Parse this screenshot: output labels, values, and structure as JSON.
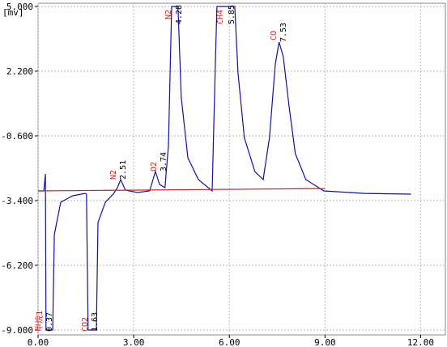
{
  "chart_data": {
    "type": "line",
    "y_unit": "[mv]",
    "xlim": [
      0,
      12.7
    ],
    "ylim": [
      -9,
      5
    ],
    "xticks": [
      {
        "value": 0,
        "label": "0.00"
      },
      {
        "value": 3,
        "label": "3.00"
      },
      {
        "value": 6,
        "label": "6.00"
      },
      {
        "value": 9,
        "label": "9.00"
      },
      {
        "value": 12,
        "label": "12.00"
      }
    ],
    "yticks": [
      {
        "value": 5,
        "label": "5.000"
      },
      {
        "value": 2.2,
        "label": "2.200"
      },
      {
        "value": -0.6,
        "label": "-0.600"
      },
      {
        "value": -3.4,
        "label": "-3.400"
      },
      {
        "value": -6.2,
        "label": "-6.200"
      },
      {
        "value": -9,
        "label": "-9.000"
      }
    ],
    "grid": true,
    "series": [
      {
        "color": "#1010a0",
        "x": [
          0.0,
          0.18,
          0.23,
          0.25,
          0.46,
          0.51,
          0.71,
          1.09,
          1.47,
          1.52,
          1.57,
          1.83,
          1.88,
          2.11,
          2.36,
          2.49,
          2.59,
          2.74,
          3.12,
          3.5,
          3.68,
          3.81,
          3.98,
          4.09,
          4.19,
          4.39,
          4.49,
          4.7,
          5.03,
          5.46,
          5.56,
          5.61,
          6.17,
          6.27,
          6.47,
          6.8,
          7.06,
          7.26,
          7.44,
          7.56,
          7.69,
          7.87,
          8.07,
          8.4,
          8.96,
          10.23,
          11.7
        ],
        "values": [
          -2.98,
          -2.98,
          -2.25,
          -9.0,
          -9.0,
          -4.87,
          -3.47,
          -3.19,
          -3.09,
          -3.12,
          -9.0,
          -9.0,
          -4.35,
          -3.47,
          -3.12,
          -2.84,
          -2.49,
          -2.95,
          -3.05,
          -2.98,
          -2.14,
          -2.7,
          -2.84,
          -1.02,
          5.0,
          5.0,
          1.08,
          -1.55,
          -2.49,
          -2.98,
          2.48,
          5.0,
          5.0,
          2.13,
          -0.67,
          -2.14,
          -2.49,
          -0.67,
          2.48,
          3.46,
          2.83,
          0.73,
          -1.37,
          -2.49,
          -2.98,
          -3.09,
          -3.12
        ]
      },
      {
        "color": "#d02020",
        "x": [
          0.0,
          9.0
        ],
        "values": [
          -2.98,
          -2.88
        ]
      }
    ],
    "peaks": [
      {
        "name": "甲烷1",
        "time": "0.37"
      },
      {
        "name": "CO2",
        "time": "1.63"
      },
      {
        "name": "N2",
        "time": "2.51"
      },
      {
        "name": "O2",
        "time": "3.74"
      },
      {
        "name": "N2",
        "time": "4.28"
      },
      {
        "name": "CH4",
        "time": "5.85"
      },
      {
        "name": "CO",
        "time": "7.53"
      }
    ]
  }
}
